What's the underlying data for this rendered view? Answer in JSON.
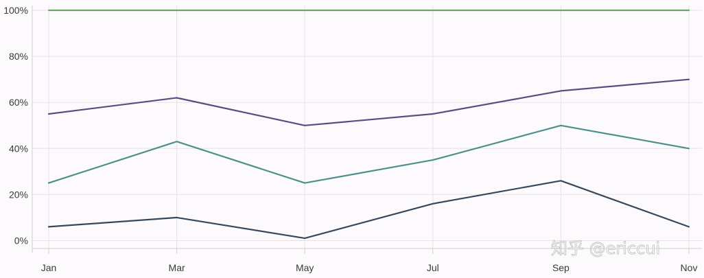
{
  "chart_data": {
    "type": "line",
    "title": "",
    "xlabel": "",
    "ylabel": "",
    "categories": [
      "Jan",
      "Mar",
      "May",
      "Jul",
      "Sep",
      "Nov"
    ],
    "ylim": [
      -4,
      104
    ],
    "yticks": [
      0,
      20,
      40,
      60,
      80,
      100
    ],
    "ytick_labels": [
      "0%",
      "20%",
      "40%",
      "60%",
      "80%",
      "100%"
    ],
    "grid": true,
    "legend": "none",
    "series": [
      {
        "values": [
          100,
          100,
          100,
          100,
          100,
          100
        ],
        "color": "#6aa569"
      },
      {
        "values": [
          55,
          62,
          50,
          55,
          65,
          70
        ],
        "color": "#5e4a7f"
      },
      {
        "values": [
          25,
          43,
          25,
          35,
          50,
          40
        ],
        "color": "#4e9089"
      },
      {
        "values": [
          6,
          10,
          1,
          16,
          26,
          6
        ],
        "color": "#34495e"
      }
    ]
  },
  "watermark": {
    "text": "知乎 @ericcui"
  },
  "colors": {
    "grid": "#e6e2e6",
    "axis": "#cfcfcf",
    "background": "#fdfafd"
  }
}
